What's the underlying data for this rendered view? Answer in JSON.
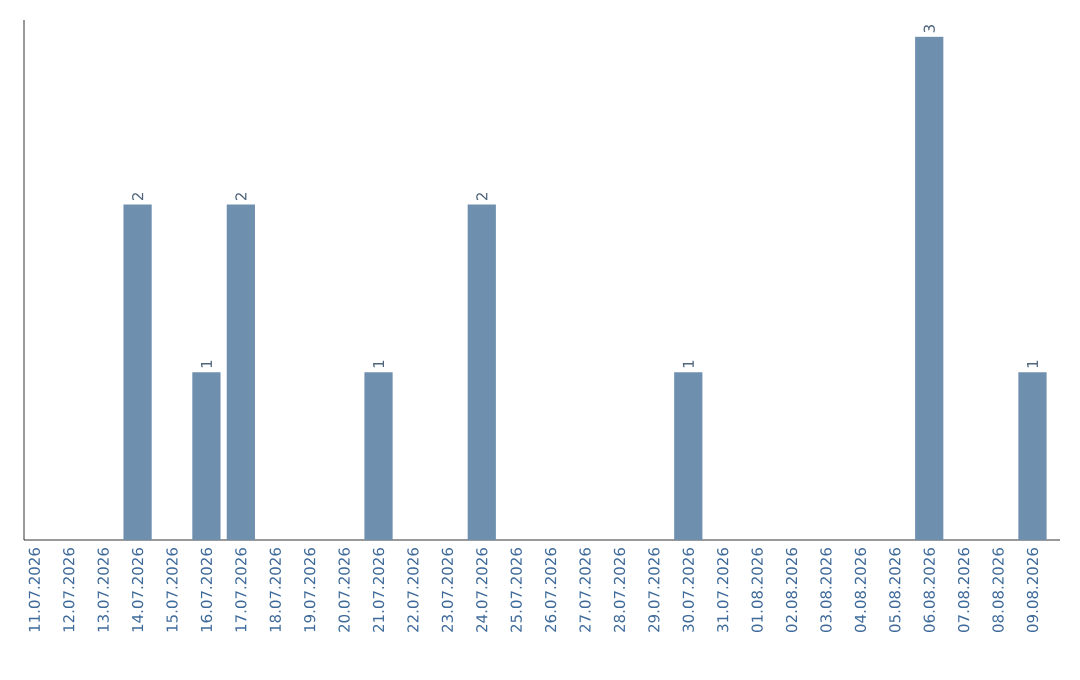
{
  "chart_data": {
    "type": "bar",
    "categories": [
      "11.07.2026",
      "12.07.2026",
      "13.07.2026",
      "14.07.2026",
      "15.07.2026",
      "16.07.2026",
      "17.07.2026",
      "18.07.2026",
      "19.07.2026",
      "20.07.2026",
      "21.07.2026",
      "22.07.2026",
      "23.07.2026",
      "24.07.2026",
      "25.07.2026",
      "26.07.2026",
      "27.07.2026",
      "28.07.2026",
      "29.07.2026",
      "30.07.2026",
      "31.07.2026",
      "01.08.2026",
      "02.08.2026",
      "03.08.2026",
      "04.08.2026",
      "05.08.2026",
      "06.08.2026",
      "07.08.2026",
      "08.08.2026",
      "09.08.2026"
    ],
    "values": [
      0,
      0,
      0,
      2,
      0,
      1,
      2,
      0,
      0,
      0,
      1,
      0,
      0,
      2,
      0,
      0,
      0,
      0,
      0,
      1,
      0,
      0,
      0,
      0,
      0,
      0,
      3,
      0,
      0,
      1
    ],
    "value_labels": [
      null,
      null,
      null,
      "2",
      null,
      "1",
      "2",
      null,
      null,
      null,
      "1",
      null,
      null,
      "2",
      null,
      null,
      null,
      null,
      null,
      "1",
      null,
      null,
      null,
      null,
      null,
      null,
      "3",
      null,
      null,
      "1"
    ],
    "color": "#6e8fae",
    "ylim": [
      0,
      3.1
    ],
    "tick_labels": "x"
  }
}
